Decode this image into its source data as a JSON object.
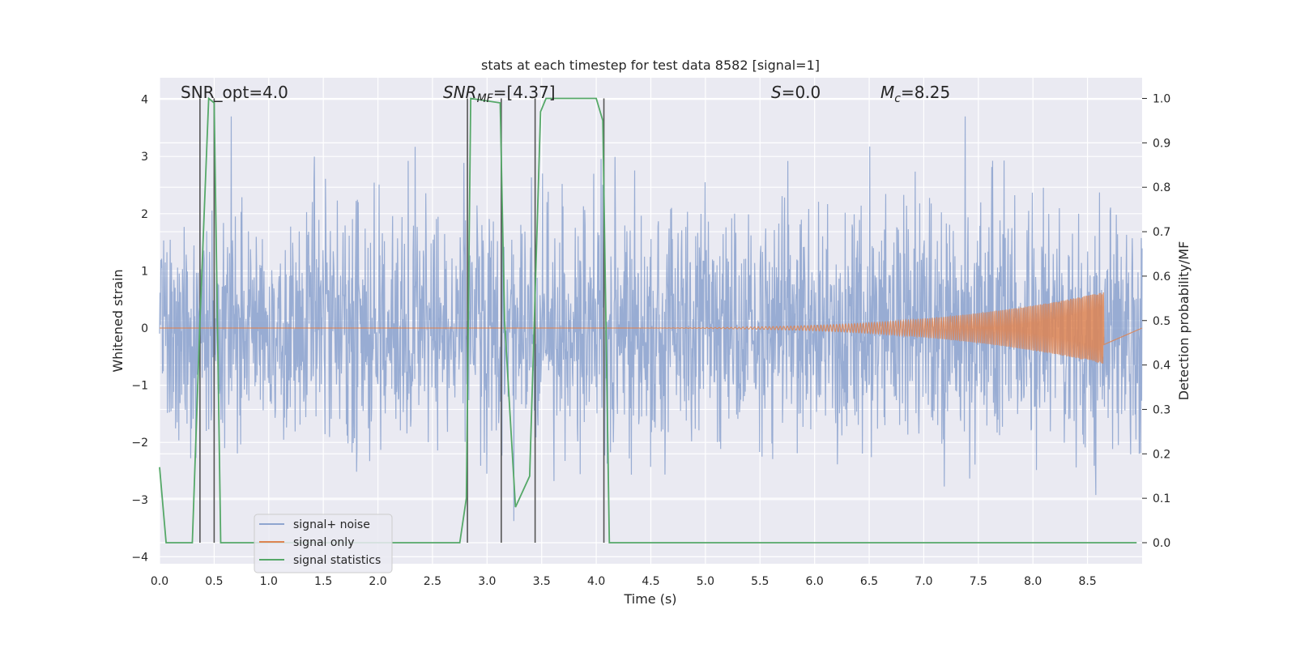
{
  "chart_data": {
    "type": "line",
    "title": "stats at each timestep for test data 8582 [signal=1]",
    "xlabel": "Time (s)",
    "ylabel": "Whitened strain",
    "ylabel_right": "Detection probability/MF",
    "xlim": [
      0.0,
      9.0
    ],
    "ylim": [
      -4.2,
      4.35
    ],
    "ylim_right": [
      -0.045,
      1.045
    ],
    "x_ticks": [
      "0.0",
      "0.5",
      "1.0",
      "1.5",
      "2.0",
      "2.5",
      "3.0",
      "3.5",
      "4.0",
      "4.5",
      "5.0",
      "5.5",
      "6.0",
      "6.5",
      "7.0",
      "7.5",
      "8.0",
      "8.5"
    ],
    "y_ticks": [
      "4",
      "3",
      "2",
      "1",
      "0",
      "−1",
      "−2",
      "−3",
      "−4"
    ],
    "y_ticks_right": [
      "1.0",
      "0.9",
      "0.8",
      "0.7",
      "0.6",
      "0.5",
      "0.4",
      "0.3",
      "0.2",
      "0.1",
      "0.0"
    ],
    "grid": true,
    "legend_position": "lower-left",
    "annotations": {
      "snr_opt": "SNR_opt=4.0",
      "snr_mf_label": "SNR",
      "snr_mf_sub": "MF",
      "snr_mf_value": "=[4.37]",
      "s_label": "S",
      "s_value": "=0.0",
      "mc_label": "M",
      "mc_sub": "c",
      "mc_value": "=8.25"
    },
    "series": [
      {
        "name": "signal+ noise",
        "color": "#8fa5cf",
        "axis": "left",
        "description_values": "whitened Gaussian noise, approx. ±1.7 typical amplitude, extremes about ±3.7, sampled densely over 0–9 s"
      },
      {
        "name": "signal only",
        "color": "#dd8452",
        "axis": "left",
        "chirp": {
          "t_start": 4.3,
          "t_end": 8.65,
          "amplitude_end": 0.6
        }
      },
      {
        "name": "signal statistics",
        "color": "#55a868",
        "axis": "right",
        "x": [
          0.0,
          0.06,
          0.1,
          0.3,
          0.37,
          0.45,
          0.5,
          0.56,
          0.62,
          2.75,
          2.81,
          2.85,
          3.12,
          3.16,
          3.26,
          3.39,
          3.49,
          3.54,
          4.0,
          4.06,
          4.12,
          8.95
        ],
        "y": [
          0.17,
          0.0,
          0.0,
          0.0,
          0.5,
          1.0,
          0.99,
          0.0,
          0.0,
          0.0,
          0.1,
          1.0,
          0.99,
          0.5,
          0.08,
          0.15,
          0.97,
          1.0,
          1.0,
          0.95,
          0.0,
          0.0
        ]
      }
    ],
    "vertical_markers": [
      0.37,
      0.5,
      2.82,
      3.13,
      3.44,
      4.07
    ]
  }
}
